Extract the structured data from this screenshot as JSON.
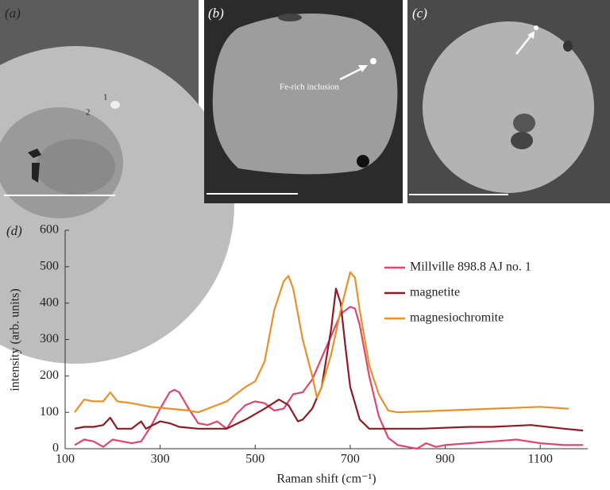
{
  "panels": [
    {
      "label": "(a)",
      "annotations": [
        "1",
        "2"
      ]
    },
    {
      "label": "(b)",
      "annotations": [
        "Fe-rich inclusion"
      ]
    },
    {
      "label": "(c)"
    }
  ],
  "chart_data": {
    "type": "line",
    "panel_label": "(d)",
    "xlabel": "Raman shift (cm⁻¹)",
    "ylabel": "intensity (arb. units)",
    "xlim": [
      100,
      1200
    ],
    "ylim": [
      0,
      600
    ],
    "xticks": [
      100,
      300,
      500,
      700,
      900,
      1100
    ],
    "yticks": [
      0,
      100,
      200,
      300,
      400,
      500,
      600
    ],
    "legend": "right",
    "series": [
      {
        "name": "Millville 898.8 AJ no. 1",
        "color": "#e0456e",
        "x": [
          120,
          140,
          160,
          180,
          200,
          220,
          240,
          260,
          280,
          300,
          320,
          330,
          340,
          360,
          380,
          400,
          420,
          440,
          460,
          480,
          500,
          520,
          540,
          560,
          580,
          600,
          620,
          640,
          660,
          680,
          700,
          710,
          720,
          740,
          760,
          780,
          800,
          820,
          840,
          860,
          880,
          900,
          950,
          1000,
          1050,
          1100,
          1150,
          1190
        ],
        "values": [
          10,
          25,
          20,
          5,
          25,
          20,
          15,
          20,
          60,
          110,
          155,
          162,
          155,
          110,
          70,
          65,
          75,
          55,
          95,
          120,
          130,
          125,
          105,
          110,
          150,
          155,
          190,
          250,
          310,
          370,
          390,
          385,
          340,
          200,
          90,
          30,
          10,
          5,
          0,
          15,
          5,
          10,
          15,
          20,
          25,
          15,
          10,
          10
        ]
      },
      {
        "name": "magnetite",
        "color": "#8b1c24",
        "x": [
          120,
          140,
          160,
          180,
          195,
          210,
          240,
          260,
          270,
          300,
          320,
          340,
          380,
          400,
          440,
          480,
          520,
          550,
          570,
          590,
          600,
          620,
          640,
          660,
          670,
          680,
          690,
          700,
          720,
          740,
          780,
          850,
          950,
          1000,
          1080,
          1150,
          1190
        ],
        "values": [
          55,
          60,
          60,
          65,
          85,
          55,
          55,
          75,
          55,
          75,
          70,
          60,
          55,
          55,
          55,
          80,
          110,
          135,
          120,
          75,
          80,
          110,
          170,
          330,
          440,
          400,
          280,
          170,
          80,
          55,
          55,
          55,
          60,
          60,
          65,
          55,
          50
        ]
      },
      {
        "name": "magnesiochromite",
        "color": "#e8902a",
        "x": [
          120,
          140,
          160,
          180,
          195,
          210,
          240,
          280,
          320,
          360,
          380,
          400,
          440,
          480,
          500,
          520,
          540,
          560,
          570,
          580,
          600,
          620,
          630,
          640,
          660,
          680,
          700,
          710,
          720,
          740,
          760,
          780,
          800,
          900,
          1000,
          1100,
          1160
        ],
        "values": [
          100,
          135,
          130,
          130,
          155,
          130,
          125,
          115,
          110,
          105,
          100,
          110,
          130,
          170,
          185,
          240,
          380,
          460,
          475,
          440,
          300,
          200,
          140,
          170,
          260,
          380,
          485,
          470,
          380,
          230,
          150,
          105,
          100,
          105,
          110,
          115,
          110
        ]
      }
    ]
  }
}
